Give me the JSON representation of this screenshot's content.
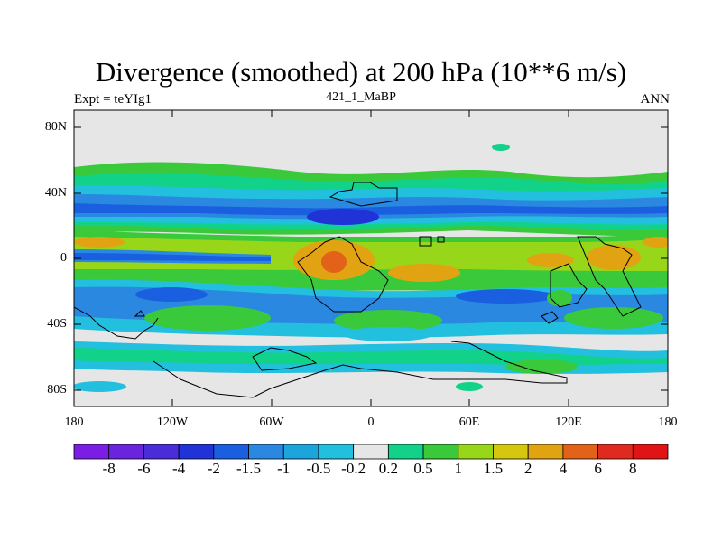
{
  "title": "Divergence (smoothed) at 200 hPa (10**6 m/s)",
  "left_label": "Expt = teYIg1",
  "center_label": "421_1_MaBP",
  "right_label": "ANN",
  "lat_ticks": [
    "80N",
    "40N",
    "0",
    "40S",
    "80S"
  ],
  "lon_ticks": [
    "180",
    "120W",
    "60W",
    "0",
    "60E",
    "120E",
    "180"
  ],
  "colorbar": {
    "levels": [
      "-8",
      "-6",
      "-4",
      "-2",
      "-1.5",
      "-1",
      "-0.5",
      "-0.2",
      "0.2",
      "0.5",
      "1",
      "1.5",
      "2",
      "4",
      "6",
      "8"
    ],
    "colors": [
      "#7a1ee6",
      "#6b24dd",
      "#4a2cd8",
      "#1f33d6",
      "#1a5fe0",
      "#2a88e0",
      "#1ca4dc",
      "#22bfdf",
      "#e6e6e6",
      "#12d28a",
      "#3ac93a",
      "#98d61a",
      "#d6c60e",
      "#e2a312",
      "#e2621a",
      "#e02a20",
      "#e01414"
    ]
  },
  "map": {
    "background": "#e6e6e6",
    "type": "filled contour map",
    "projection": "cylindrical equidistant",
    "lat_range": [
      -90,
      90
    ],
    "lon_range": [
      -180,
      180
    ]
  }
}
